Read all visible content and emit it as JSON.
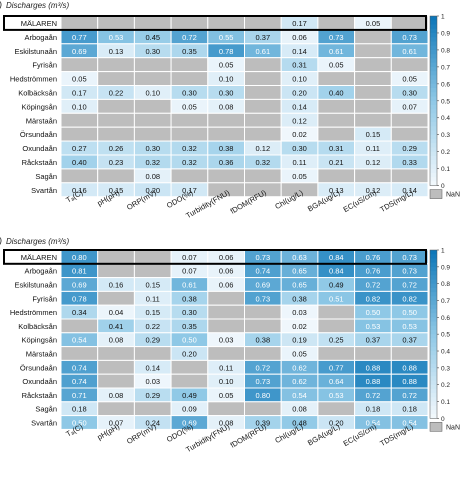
{
  "figure": {
    "colorbar_ticks": [
      "0",
      "0.1",
      "0.2",
      "0.3",
      "0.4",
      "0.5",
      "0.6",
      "0.7",
      "0.8",
      "0.9",
      "1"
    ],
    "nan_label": "NaN",
    "colors": {
      "low": "#f4f9fd",
      "mid": "#8ec8e6",
      "high": "#0b75b7",
      "nan": "#bdbdbd",
      "text_light": "#ffffff",
      "text_dark": "#111111",
      "grid": "#ffffff",
      "highlight_border": "#000000"
    }
  },
  "chart_data": [
    {
      "type": "heatmap",
      "panel_label": "a)",
      "title": "Discharges (m³/s)",
      "highlighted_row": "MÄLAREN",
      "rows": [
        "MÄLAREN",
        "Arbogaån",
        "Eskilstunaån",
        "Fyrisån",
        "Hedströmmen",
        "Kolbäcksån",
        "Köpingsån",
        "Märstaån",
        "Örsundaån",
        "Oxundaån",
        "Råckstaån",
        "Sagån",
        "Svartån"
      ],
      "columns": [
        "Tₐ(C)",
        "pH(pH)",
        "ORP(mV)",
        "ODO(%)",
        "Turbidity(FNU)",
        "fDOM(RFU)",
        "Chl(ug/L)",
        "BGA(ug/L)",
        "EC(uS/cm)",
        "TDS(mg/L)"
      ],
      "color_range": [
        0,
        1
      ],
      "values": [
        [
          null,
          null,
          null,
          null,
          null,
          null,
          0.17,
          null,
          0.05,
          null
        ],
        [
          0.77,
          0.53,
          0.45,
          0.72,
          0.55,
          0.37,
          0.06,
          0.73,
          null,
          0.73
        ],
        [
          0.69,
          0.13,
          0.3,
          0.35,
          0.78,
          0.61,
          0.14,
          0.61,
          null,
          0.61
        ],
        [
          null,
          null,
          null,
          null,
          0.05,
          null,
          0.31,
          0.05,
          null,
          null
        ],
        [
          0.05,
          null,
          null,
          null,
          0.1,
          null,
          0.1,
          null,
          null,
          0.05
        ],
        [
          0.17,
          0.22,
          0.1,
          0.3,
          0.3,
          null,
          0.2,
          0.4,
          null,
          0.3
        ],
        [
          0.1,
          null,
          null,
          0.05,
          0.08,
          null,
          0.14,
          null,
          null,
          0.07
        ],
        [
          null,
          null,
          null,
          null,
          null,
          null,
          0.12,
          null,
          null,
          null
        ],
        [
          null,
          null,
          null,
          null,
          null,
          null,
          0.02,
          null,
          0.15,
          null
        ],
        [
          0.27,
          0.26,
          0.3,
          0.32,
          0.38,
          0.12,
          0.3,
          0.31,
          0.11,
          0.29
        ],
        [
          0.4,
          0.23,
          0.32,
          0.32,
          0.36,
          0.32,
          0.11,
          0.21,
          0.12,
          0.33
        ],
        [
          null,
          null,
          0.08,
          null,
          null,
          null,
          0.05,
          null,
          null,
          null
        ],
        [
          0.16,
          0.15,
          0.2,
          0.17,
          null,
          null,
          null,
          0.13,
          0.12,
          0.14
        ]
      ]
    },
    {
      "type": "heatmap",
      "panel_label": "b)",
      "title": "Discharges (m³/s)",
      "highlighted_row": "MÄLAREN",
      "rows": [
        "MÄLAREN",
        "Arbogaån",
        "Eskilstunaån",
        "Fyrisån",
        "Hedströmmen",
        "Kolbäcksån",
        "Köpingsån",
        "Märstaån",
        "Örsundaån",
        "Oxundaån",
        "Råckstaån",
        "Sagån",
        "Svartån"
      ],
      "columns": [
        "Tₐ(C)",
        "pH(pH)",
        "ORP(mV)",
        "ODO(%)",
        "Turbidity(FNU)",
        "fDOM(RFU)",
        "Chl(ug/L)",
        "BGA(ug/L)",
        "EC(uS/cm)",
        "TDS(mg/L)"
      ],
      "color_range": [
        0,
        1
      ],
      "values": [
        [
          0.8,
          null,
          null,
          0.07,
          0.06,
          0.73,
          0.63,
          0.84,
          0.76,
          0.73
        ],
        [
          0.81,
          null,
          null,
          0.07,
          0.06,
          0.74,
          0.65,
          0.84,
          0.76,
          0.73
        ],
        [
          0.69,
          0.16,
          0.15,
          0.61,
          0.06,
          0.69,
          0.65,
          0.49,
          0.72,
          0.72
        ],
        [
          0.78,
          null,
          0.11,
          0.38,
          null,
          0.73,
          0.38,
          0.51,
          0.82,
          0.82
        ],
        [
          0.34,
          0.04,
          0.15,
          0.3,
          null,
          null,
          0.03,
          null,
          0.5,
          0.5
        ],
        [
          null,
          0.41,
          0.22,
          0.35,
          null,
          null,
          0.02,
          null,
          0.53,
          0.53
        ],
        [
          0.54,
          0.08,
          0.29,
          0.5,
          0.03,
          0.38,
          0.19,
          0.25,
          0.37,
          0.37
        ],
        [
          null,
          null,
          null,
          0.2,
          null,
          null,
          0.05,
          null,
          null,
          null
        ],
        [
          0.74,
          null,
          0.14,
          null,
          0.11,
          0.72,
          0.62,
          0.77,
          0.88,
          0.88
        ],
        [
          0.74,
          null,
          0.03,
          null,
          0.1,
          0.73,
          0.62,
          0.64,
          0.88,
          0.88
        ],
        [
          0.71,
          0.08,
          0.29,
          0.49,
          0.05,
          0.8,
          0.54,
          0.53,
          0.72,
          0.72
        ],
        [
          0.18,
          null,
          null,
          0.09,
          null,
          null,
          0.08,
          null,
          0.18,
          0.18
        ],
        [
          0.5,
          0.07,
          0.24,
          0.69,
          0.08,
          0.39,
          0.48,
          0.2,
          0.54,
          0.54
        ]
      ]
    }
  ]
}
